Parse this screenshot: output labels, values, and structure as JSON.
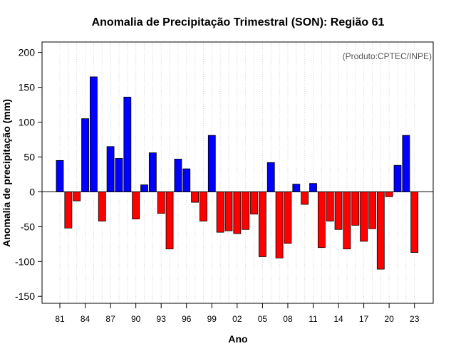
{
  "chart_data": {
    "type": "bar",
    "title": "Anomalia de Precipitação Trimestral (SON): Região 61",
    "xlabel": "Ano",
    "ylabel": "Anomalia de precipitação (mm)",
    "annotation": "(Produto:CPTEC/INPE)",
    "ylim": [
      -160,
      215
    ],
    "yticks": [
      -150,
      -100,
      -50,
      0,
      50,
      100,
      150,
      200
    ],
    "x_tick_labels": [
      {
        "year": 1981,
        "label": "81"
      },
      {
        "year": 1984,
        "label": "84"
      },
      {
        "year": 1987,
        "label": "87"
      },
      {
        "year": 1990,
        "label": "90"
      },
      {
        "year": 1993,
        "label": "93"
      },
      {
        "year": 1996,
        "label": "96"
      },
      {
        "year": 1999,
        "label": "99"
      },
      {
        "year": 2002,
        "label": "02"
      },
      {
        "year": 2005,
        "label": "05"
      },
      {
        "year": 2008,
        "label": "08"
      },
      {
        "year": 2011,
        "label": "11"
      },
      {
        "year": 2014,
        "label": "14"
      },
      {
        "year": 2017,
        "label": "17"
      },
      {
        "year": 2020,
        "label": "20"
      },
      {
        "year": 2023,
        "label": "23"
      }
    ],
    "years": [
      1981,
      1982,
      1983,
      1984,
      1985,
      1986,
      1987,
      1988,
      1989,
      1990,
      1991,
      1992,
      1993,
      1994,
      1995,
      1996,
      1997,
      1998,
      1999,
      2000,
      2001,
      2002,
      2003,
      2004,
      2005,
      2006,
      2007,
      2008,
      2009,
      2010,
      2011,
      2012,
      2013,
      2014,
      2015,
      2016,
      2017,
      2018,
      2019,
      2020,
      2021,
      2022,
      2023
    ],
    "values": [
      45,
      -52,
      -13,
      105,
      165,
      -42,
      65,
      48,
      136,
      -39,
      10,
      56,
      -31,
      -82,
      47,
      33,
      -15,
      -42,
      81,
      -58,
      -56,
      -60,
      -54,
      -32,
      -93,
      42,
      -95,
      -74,
      11,
      -18,
      12,
      -80,
      -42,
      -54,
      -82,
      -48,
      -71,
      -53,
      -111,
      -7,
      38,
      81,
      -87
    ],
    "colors": {
      "positive": "#0000ff",
      "negative": "#ff0000",
      "bar_edge": "#000000",
      "grid": "#d3d3d3",
      "frame": "#000000"
    },
    "grid": true
  }
}
